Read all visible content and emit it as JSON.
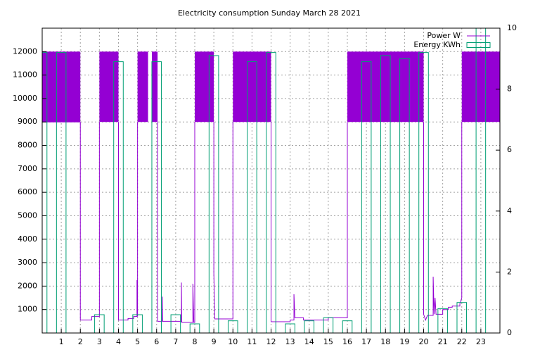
{
  "chart_data": {
    "type": "line",
    "title": "Electricity consumption Sunday March 28 2021",
    "xlim": [
      0,
      24
    ],
    "xticks": [
      1,
      2,
      3,
      4,
      5,
      6,
      7,
      8,
      9,
      10,
      11,
      12,
      13,
      14,
      15,
      16,
      17,
      18,
      19,
      20,
      21,
      22,
      23
    ],
    "ylim": [
      0,
      13000
    ],
    "yticks": [
      1000,
      2000,
      3000,
      4000,
      5000,
      6000,
      7000,
      8000,
      9000,
      10000,
      11000,
      12000
    ],
    "y2lim": [
      0,
      10
    ],
    "y2ticks": [
      0,
      2,
      4,
      6,
      8,
      10
    ],
    "grid": true,
    "legend": "top-right",
    "series": [
      {
        "name": "Power W",
        "color": "#9400d3",
        "x": [
          0,
          0,
          2,
          2,
          2.6,
          2.6,
          3,
          3,
          4,
          4,
          4,
          4.5,
          4.5,
          4.8,
          4.8,
          4.97,
          4.97,
          5,
          5,
          5,
          6.05,
          6.05,
          6.3,
          6.3,
          6.32,
          7.3,
          7.3,
          7.32,
          7.9,
          7.9,
          7.95,
          8,
          8,
          8,
          9,
          9,
          9.05,
          10,
          10,
          10,
          12,
          12,
          13,
          13,
          13.2,
          13.2,
          13.25,
          13.7,
          13.7,
          15,
          15,
          16,
          16,
          16,
          20,
          20,
          20.1,
          20.2,
          20.5,
          20.5,
          20.55,
          20.6,
          20.65,
          21,
          21,
          21.3,
          21.3,
          21.5,
          21.5,
          21.9,
          21.9,
          22,
          22
        ],
        "values": [
          600,
          9000,
          9000,
          550,
          550,
          700,
          700,
          9000,
          null,
          9000,
          550,
          550,
          620,
          620,
          700,
          700,
          2250,
          700,
          9000,
          null,
          9000,
          500,
          500,
          1550,
          500,
          500,
          2150,
          450,
          450,
          2100,
          450,
          450,
          9000,
          null,
          9000,
          2550,
          600,
          600,
          9000,
          null,
          9000,
          480,
          480,
          550,
          550,
          1650,
          650,
          650,
          550,
          550,
          650,
          650,
          9000,
          null,
          9000,
          800,
          550,
          750,
          750,
          2400,
          800,
          1500,
          800,
          800,
          1000,
          1000,
          1100,
          1100,
          1150,
          1150,
          1250,
          1500,
          9000
        ],
        "ranges": [
          {
            "x": [
              0,
              2
            ],
            "values": [
              9000,
              12000
            ]
          },
          {
            "x": [
              3,
              4
            ],
            "values": [
              9000,
              12000
            ]
          },
          {
            "x": [
              5,
              5.55
            ],
            "values": [
              9000,
              12000
            ]
          },
          {
            "x": [
              5.75,
              6.05
            ],
            "values": [
              9000,
              12000
            ]
          },
          {
            "x": [
              8,
              9
            ],
            "values": [
              9000,
              12000
            ]
          },
          {
            "x": [
              10,
              12
            ],
            "values": [
              9000,
              12000
            ]
          },
          {
            "x": [
              16,
              20
            ],
            "values": [
              9000,
              12000
            ]
          },
          {
            "x": [
              22,
              24
            ],
            "values": [
              9000,
              12000
            ]
          }
        ]
      },
      {
        "name": "Energy KWh",
        "color": "#009e73",
        "axis": "y2",
        "x": [
          0,
          1,
          2,
          3,
          4,
          5,
          6,
          7,
          8,
          9,
          10,
          11,
          12,
          13,
          14,
          15,
          16,
          17,
          18,
          19,
          20,
          21,
          22,
          23
        ],
        "values": [
          9.2,
          9.2,
          0,
          0.6,
          8.9,
          0.6,
          8.9,
          0.6,
          0.3,
          9.1,
          0.4,
          8.9,
          9.2,
          0.3,
          0.4,
          0.5,
          0.4,
          8.9,
          9.1,
          9.0,
          9.2,
          0.8,
          1.0,
          10
        ]
      }
    ]
  }
}
